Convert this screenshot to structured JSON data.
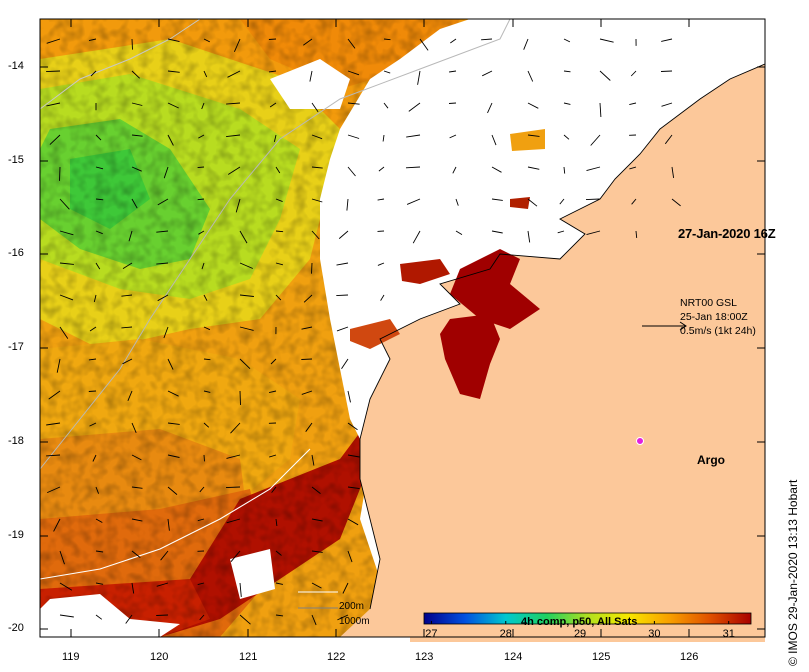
{
  "map": {
    "timestamp": "27-Jan-2020 16Z",
    "source_line1": "NRT00 GSL",
    "source_line2": "25-Jan 18:00Z",
    "source_line3": "0.5m/s (1kt 24h)",
    "argo_label": "Argo",
    "isobath_200": "200m",
    "isobath_1000": "1000m",
    "credit": "© IMOS 29-Jan-2020 13:13 Hobart",
    "land_color": "#fcc89a",
    "argo_color": "#e020e0"
  },
  "axes": {
    "x_ticks": [
      "119",
      "120",
      "121",
      "122",
      "123",
      "124",
      "125",
      "126"
    ],
    "y_ticks": [
      "-14",
      "-15",
      "-16",
      "-17",
      "-18",
      "-19",
      "-20"
    ]
  },
  "colorbar": {
    "title": "4h comp, p50, All Sats",
    "ticks": [
      "27",
      "28",
      "29",
      "30",
      "31"
    ],
    "min": 26.9,
    "max": 31.3,
    "colors": [
      "#00008b",
      "#0050e0",
      "#00c8d0",
      "#20d060",
      "#b0e020",
      "#f8e800",
      "#f8a000",
      "#e05000",
      "#a80000"
    ]
  }
}
